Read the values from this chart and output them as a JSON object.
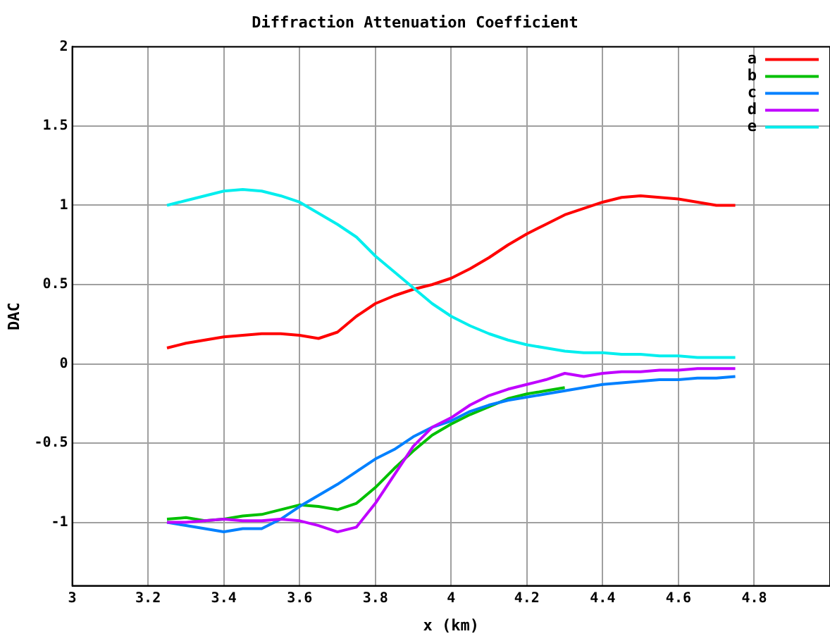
{
  "chart_data": {
    "type": "line",
    "title": "Diffraction Attenuation Coefficient",
    "xlabel": "x (km)",
    "ylabel": "DAC",
    "x": [
      3.25,
      3.3,
      3.35,
      3.4,
      3.45,
      3.5,
      3.55,
      3.6,
      3.65,
      3.7,
      3.75,
      3.8,
      3.85,
      3.9,
      3.95,
      4.0,
      4.05,
      4.1,
      4.15,
      4.2,
      4.25,
      4.3,
      4.35,
      4.4,
      4.45,
      4.5,
      4.55,
      4.6,
      4.65,
      4.7,
      4.75
    ],
    "series": [
      {
        "name": "a",
        "color": "#ff0000",
        "values": [
          0.1,
          0.13,
          0.15,
          0.17,
          0.18,
          0.19,
          0.19,
          0.18,
          0.16,
          0.2,
          0.3,
          0.38,
          0.43,
          0.47,
          0.5,
          0.54,
          0.6,
          0.67,
          0.75,
          0.82,
          0.88,
          0.94,
          0.98,
          1.02,
          1.05,
          1.06,
          1.05,
          1.04,
          1.02,
          1.0,
          1.0
        ]
      },
      {
        "name": "b",
        "color": "#00c000",
        "values": [
          -0.98,
          -0.97,
          -0.99,
          -0.98,
          -0.96,
          -0.95,
          -0.92,
          -0.89,
          -0.9,
          -0.92,
          -0.88,
          -0.78,
          -0.66,
          -0.55,
          -0.45,
          -0.38,
          -0.32,
          -0.27,
          -0.22,
          -0.19,
          -0.17,
          -0.15,
          null,
          null,
          null,
          null,
          null,
          null,
          null,
          null,
          null
        ]
      },
      {
        "name": "c",
        "color": "#0080ff",
        "values": [
          -1.0,
          -1.02,
          -1.04,
          -1.06,
          -1.04,
          -1.04,
          -0.98,
          -0.9,
          -0.83,
          -0.76,
          -0.68,
          -0.6,
          -0.54,
          -0.46,
          -0.4,
          -0.36,
          -0.3,
          -0.26,
          -0.23,
          -0.21,
          -0.19,
          -0.17,
          -0.15,
          -0.13,
          -0.12,
          -0.11,
          -0.1,
          -0.1,
          -0.09,
          -0.09,
          -0.08
        ]
      },
      {
        "name": "d",
        "color": "#c000ff",
        "values": [
          -1.0,
          -1.0,
          -0.99,
          -0.98,
          -0.99,
          -0.99,
          -0.98,
          -0.99,
          -1.02,
          -1.06,
          -1.03,
          -0.88,
          -0.7,
          -0.52,
          -0.4,
          -0.34,
          -0.26,
          -0.2,
          -0.16,
          -0.13,
          -0.1,
          -0.06,
          -0.08,
          -0.06,
          -0.05,
          -0.05,
          -0.04,
          -0.04,
          -0.03,
          -0.03,
          -0.03
        ]
      },
      {
        "name": "e",
        "color": "#00eeee",
        "values": [
          1.0,
          1.03,
          1.06,
          1.09,
          1.1,
          1.09,
          1.06,
          1.02,
          0.95,
          0.88,
          0.8,
          0.68,
          0.58,
          0.48,
          0.38,
          0.3,
          0.24,
          0.19,
          0.15,
          0.12,
          0.1,
          0.08,
          0.07,
          0.07,
          0.06,
          0.06,
          0.05,
          0.05,
          0.04,
          0.04,
          0.04
        ]
      }
    ],
    "xlim": [
      3,
      5
    ],
    "xticks": [
      3,
      3.2,
      3.4,
      3.6,
      3.8,
      4,
      4.2,
      4.4,
      4.6,
      4.8
    ],
    "ylim": [
      -1.4,
      2
    ],
    "yticks": [
      -1,
      -0.5,
      0,
      0.5,
      1,
      1.5,
      2
    ],
    "grid": true,
    "legend": "top right",
    "marker": "none",
    "line_style": "solid"
  }
}
